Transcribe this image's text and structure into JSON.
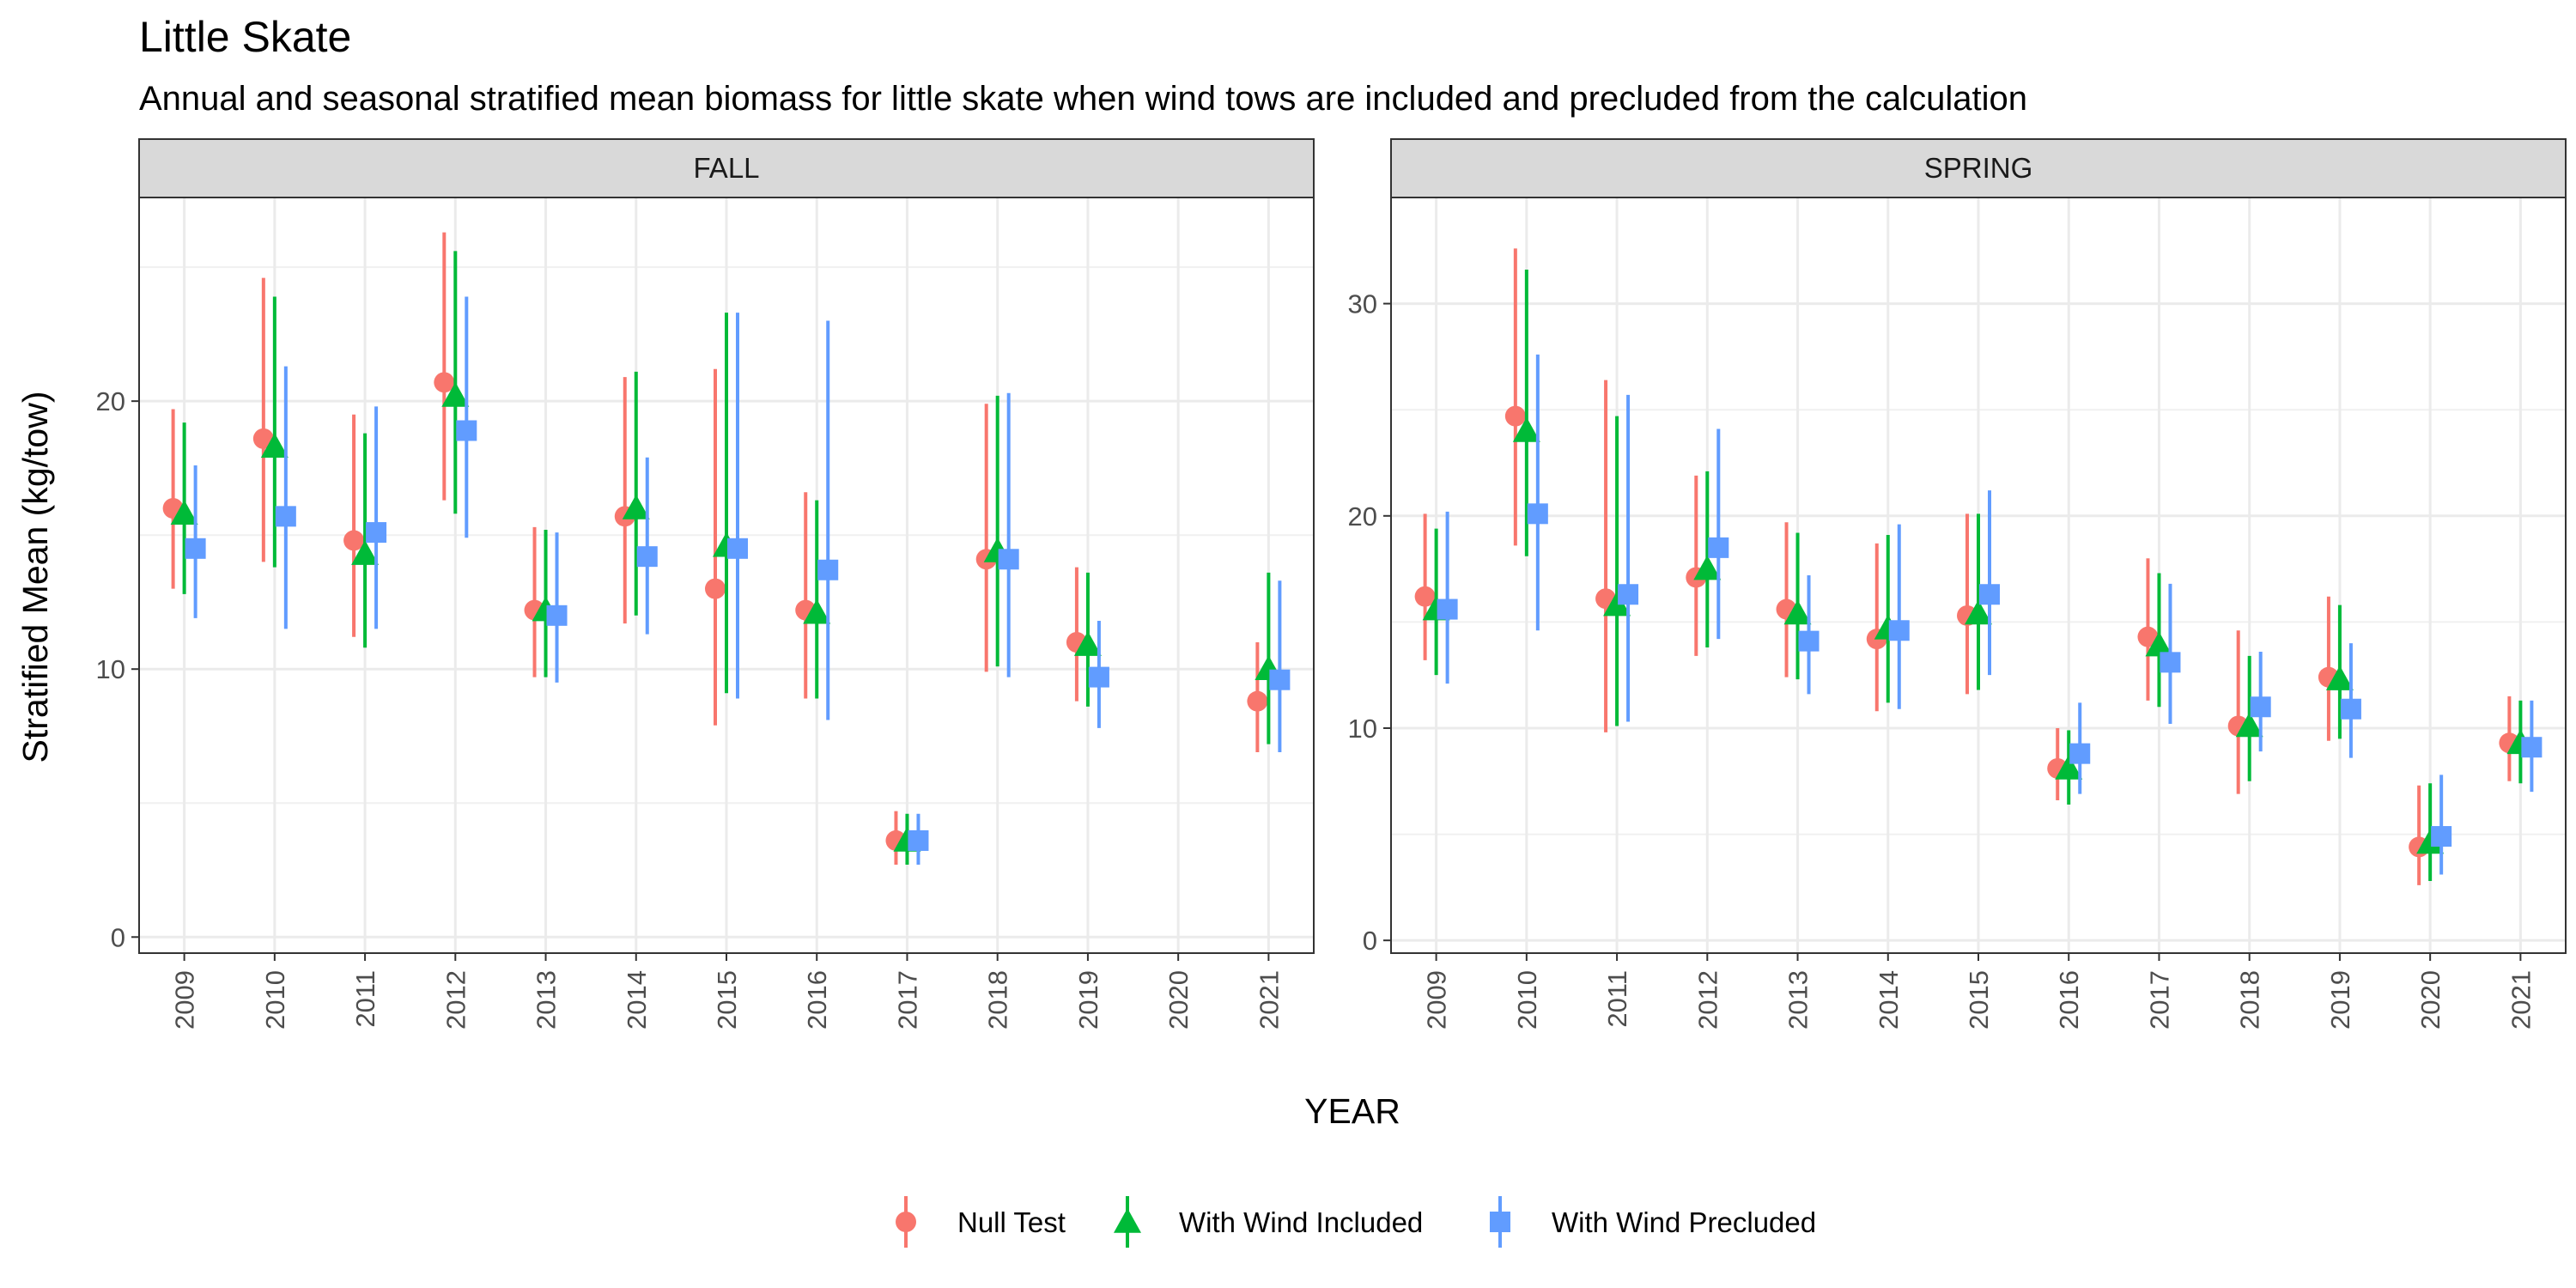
{
  "chart_data": {
    "type": "scatter",
    "title": "Little Skate",
    "subtitle": "Annual and seasonal stratified mean biomass for little skate when wind tows are included and precluded from the calculation",
    "xlabel": "YEAR",
    "ylabel": "Stratified Mean (kg/tow)",
    "categories": [
      "2009",
      "2010",
      "2011",
      "2012",
      "2013",
      "2014",
      "2015",
      "2016",
      "2017",
      "2018",
      "2019",
      "2020",
      "2021"
    ],
    "grid": true,
    "legend_position": "bottom",
    "series_meta": [
      {
        "name": "Null Test",
        "color": "#F8766D",
        "shape": "circle"
      },
      {
        "name": "With Wind Included",
        "color": "#00BA38",
        "shape": "triangle"
      },
      {
        "name": "With Wind Precluded",
        "color": "#619CFF",
        "shape": "square"
      }
    ],
    "panels": [
      {
        "label": "FALL",
        "ylim": [
          -0.6,
          27.6
        ],
        "yticks": [
          0,
          10,
          20
        ],
        "series": [
          {
            "name": "Null Test",
            "points": [
              {
                "year": "2009",
                "y": 16.0,
                "lo": 13.0,
                "hi": 19.7
              },
              {
                "year": "2010",
                "y": 18.6,
                "lo": 14.0,
                "hi": 24.6
              },
              {
                "year": "2011",
                "y": 14.8,
                "lo": 11.2,
                "hi": 19.5
              },
              {
                "year": "2012",
                "y": 20.7,
                "lo": 16.3,
                "hi": 26.3
              },
              {
                "year": "2013",
                "y": 12.2,
                "lo": 9.7,
                "hi": 15.3
              },
              {
                "year": "2014",
                "y": 15.7,
                "lo": 11.7,
                "hi": 20.9
              },
              {
                "year": "2015",
                "y": 13.0,
                "lo": 7.9,
                "hi": 21.2
              },
              {
                "year": "2016",
                "y": 12.2,
                "lo": 8.9,
                "hi": 16.6
              },
              {
                "year": "2017",
                "y": 3.6,
                "lo": 2.7,
                "hi": 4.7
              },
              {
                "year": "2018",
                "y": 14.1,
                "lo": 9.9,
                "hi": 19.9
              },
              {
                "year": "2019",
                "y": 11.0,
                "lo": 8.8,
                "hi": 13.8
              },
              {
                "year": "2021",
                "y": 8.8,
                "lo": 6.9,
                "hi": 11.0
              }
            ]
          },
          {
            "name": "With Wind Included",
            "points": [
              {
                "year": "2009",
                "y": 15.8,
                "lo": 12.8,
                "hi": 19.2
              },
              {
                "year": "2010",
                "y": 18.3,
                "lo": 13.8,
                "hi": 23.9
              },
              {
                "year": "2011",
                "y": 14.3,
                "lo": 10.8,
                "hi": 18.8
              },
              {
                "year": "2012",
                "y": 20.2,
                "lo": 15.8,
                "hi": 25.6
              },
              {
                "year": "2013",
                "y": 12.2,
                "lo": 9.7,
                "hi": 15.2
              },
              {
                "year": "2014",
                "y": 16.0,
                "lo": 12.0,
                "hi": 21.1
              },
              {
                "year": "2015",
                "y": 14.6,
                "lo": 9.1,
                "hi": 23.3
              },
              {
                "year": "2016",
                "y": 12.1,
                "lo": 8.9,
                "hi": 16.3
              },
              {
                "year": "2017",
                "y": 3.6,
                "lo": 2.7,
                "hi": 4.6
              },
              {
                "year": "2018",
                "y": 14.4,
                "lo": 10.1,
                "hi": 20.2
              },
              {
                "year": "2019",
                "y": 10.9,
                "lo": 8.6,
                "hi": 13.6
              },
              {
                "year": "2021",
                "y": 10.0,
                "lo": 7.2,
                "hi": 13.6
              }
            ]
          },
          {
            "name": "With Wind Precluded",
            "points": [
              {
                "year": "2009",
                "y": 14.5,
                "lo": 11.9,
                "hi": 17.6
              },
              {
                "year": "2010",
                "y": 15.7,
                "lo": 11.5,
                "hi": 21.3
              },
              {
                "year": "2011",
                "y": 15.1,
                "lo": 11.5,
                "hi": 19.8
              },
              {
                "year": "2012",
                "y": 18.9,
                "lo": 14.9,
                "hi": 23.9
              },
              {
                "year": "2013",
                "y": 12.0,
                "lo": 9.5,
                "hi": 15.1
              },
              {
                "year": "2014",
                "y": 14.2,
                "lo": 11.3,
                "hi": 17.9
              },
              {
                "year": "2015",
                "y": 14.5,
                "lo": 8.9,
                "hi": 23.3
              },
              {
                "year": "2016",
                "y": 13.7,
                "lo": 8.1,
                "hi": 23.0
              },
              {
                "year": "2017",
                "y": 3.6,
                "lo": 2.7,
                "hi": 4.6
              },
              {
                "year": "2018",
                "y": 14.1,
                "lo": 9.7,
                "hi": 20.3
              },
              {
                "year": "2019",
                "y": 9.7,
                "lo": 7.8,
                "hi": 11.8
              },
              {
                "year": "2021",
                "y": 9.6,
                "lo": 6.9,
                "hi": 13.3
              }
            ]
          }
        ]
      },
      {
        "label": "SPRING",
        "ylim": [
          -0.6,
          35.0
        ],
        "yticks": [
          0,
          10,
          20,
          30
        ],
        "series": [
          {
            "name": "Null Test",
            "points": [
              {
                "year": "2009",
                "y": 16.2,
                "lo": 13.2,
                "hi": 20.1
              },
              {
                "year": "2010",
                "y": 24.7,
                "lo": 18.6,
                "hi": 32.6
              },
              {
                "year": "2011",
                "y": 16.1,
                "lo": 9.8,
                "hi": 26.4
              },
              {
                "year": "2012",
                "y": 17.1,
                "lo": 13.4,
                "hi": 21.9
              },
              {
                "year": "2013",
                "y": 15.6,
                "lo": 12.4,
                "hi": 19.7
              },
              {
                "year": "2014",
                "y": 14.2,
                "lo": 10.8,
                "hi": 18.7
              },
              {
                "year": "2015",
                "y": 15.3,
                "lo": 11.6,
                "hi": 20.1
              },
              {
                "year": "2016",
                "y": 8.1,
                "lo": 6.6,
                "hi": 10.0
              },
              {
                "year": "2017",
                "y": 14.3,
                "lo": 11.3,
                "hi": 18.0
              },
              {
                "year": "2018",
                "y": 10.1,
                "lo": 6.9,
                "hi": 14.6
              },
              {
                "year": "2019",
                "y": 12.4,
                "lo": 9.4,
                "hi": 16.2
              },
              {
                "year": "2020",
                "y": 4.4,
                "lo": 2.6,
                "hi": 7.3
              },
              {
                "year": "2021",
                "y": 9.3,
                "lo": 7.5,
                "hi": 11.5
              }
            ]
          },
          {
            "name": "With Wind Included",
            "points": [
              {
                "year": "2009",
                "y": 15.6,
                "lo": 12.5,
                "hi": 19.4
              },
              {
                "year": "2010",
                "y": 24.0,
                "lo": 18.1,
                "hi": 31.6
              },
              {
                "year": "2011",
                "y": 15.8,
                "lo": 10.1,
                "hi": 24.7
              },
              {
                "year": "2012",
                "y": 17.5,
                "lo": 13.8,
                "hi": 22.1
              },
              {
                "year": "2013",
                "y": 15.4,
                "lo": 12.3,
                "hi": 19.2
              },
              {
                "year": "2014",
                "y": 14.7,
                "lo": 11.2,
                "hi": 19.1
              },
              {
                "year": "2015",
                "y": 15.4,
                "lo": 11.8,
                "hi": 20.1
              },
              {
                "year": "2016",
                "y": 8.1,
                "lo": 6.4,
                "hi": 9.9
              },
              {
                "year": "2017",
                "y": 13.9,
                "lo": 11.0,
                "hi": 17.3
              },
              {
                "year": "2018",
                "y": 10.1,
                "lo": 7.5,
                "hi": 13.4
              },
              {
                "year": "2019",
                "y": 12.3,
                "lo": 9.5,
                "hi": 15.8
              },
              {
                "year": "2020",
                "y": 4.6,
                "lo": 2.8,
                "hi": 7.4
              },
              {
                "year": "2021",
                "y": 9.3,
                "lo": 7.4,
                "hi": 11.3
              }
            ]
          },
          {
            "name": "With Wind Precluded",
            "points": [
              {
                "year": "2009",
                "y": 15.6,
                "lo": 12.1,
                "hi": 20.2
              },
              {
                "year": "2010",
                "y": 20.1,
                "lo": 14.6,
                "hi": 27.6
              },
              {
                "year": "2011",
                "y": 16.3,
                "lo": 10.3,
                "hi": 25.7
              },
              {
                "year": "2012",
                "y": 18.5,
                "lo": 14.2,
                "hi": 24.1
              },
              {
                "year": "2013",
                "y": 14.1,
                "lo": 11.6,
                "hi": 17.2
              },
              {
                "year": "2014",
                "y": 14.6,
                "lo": 10.9,
                "hi": 19.6
              },
              {
                "year": "2015",
                "y": 16.3,
                "lo": 12.5,
                "hi": 21.2
              },
              {
                "year": "2016",
                "y": 8.8,
                "lo": 6.9,
                "hi": 11.2
              },
              {
                "year": "2017",
                "y": 13.1,
                "lo": 10.2,
                "hi": 16.8
              },
              {
                "year": "2018",
                "y": 11.0,
                "lo": 8.9,
                "hi": 13.6
              },
              {
                "year": "2019",
                "y": 10.9,
                "lo": 8.6,
                "hi": 14.0
              },
              {
                "year": "2020",
                "y": 4.9,
                "lo": 3.1,
                "hi": 7.8
              },
              {
                "year": "2021",
                "y": 9.1,
                "lo": 7.0,
                "hi": 11.3
              }
            ]
          }
        ]
      }
    ]
  }
}
